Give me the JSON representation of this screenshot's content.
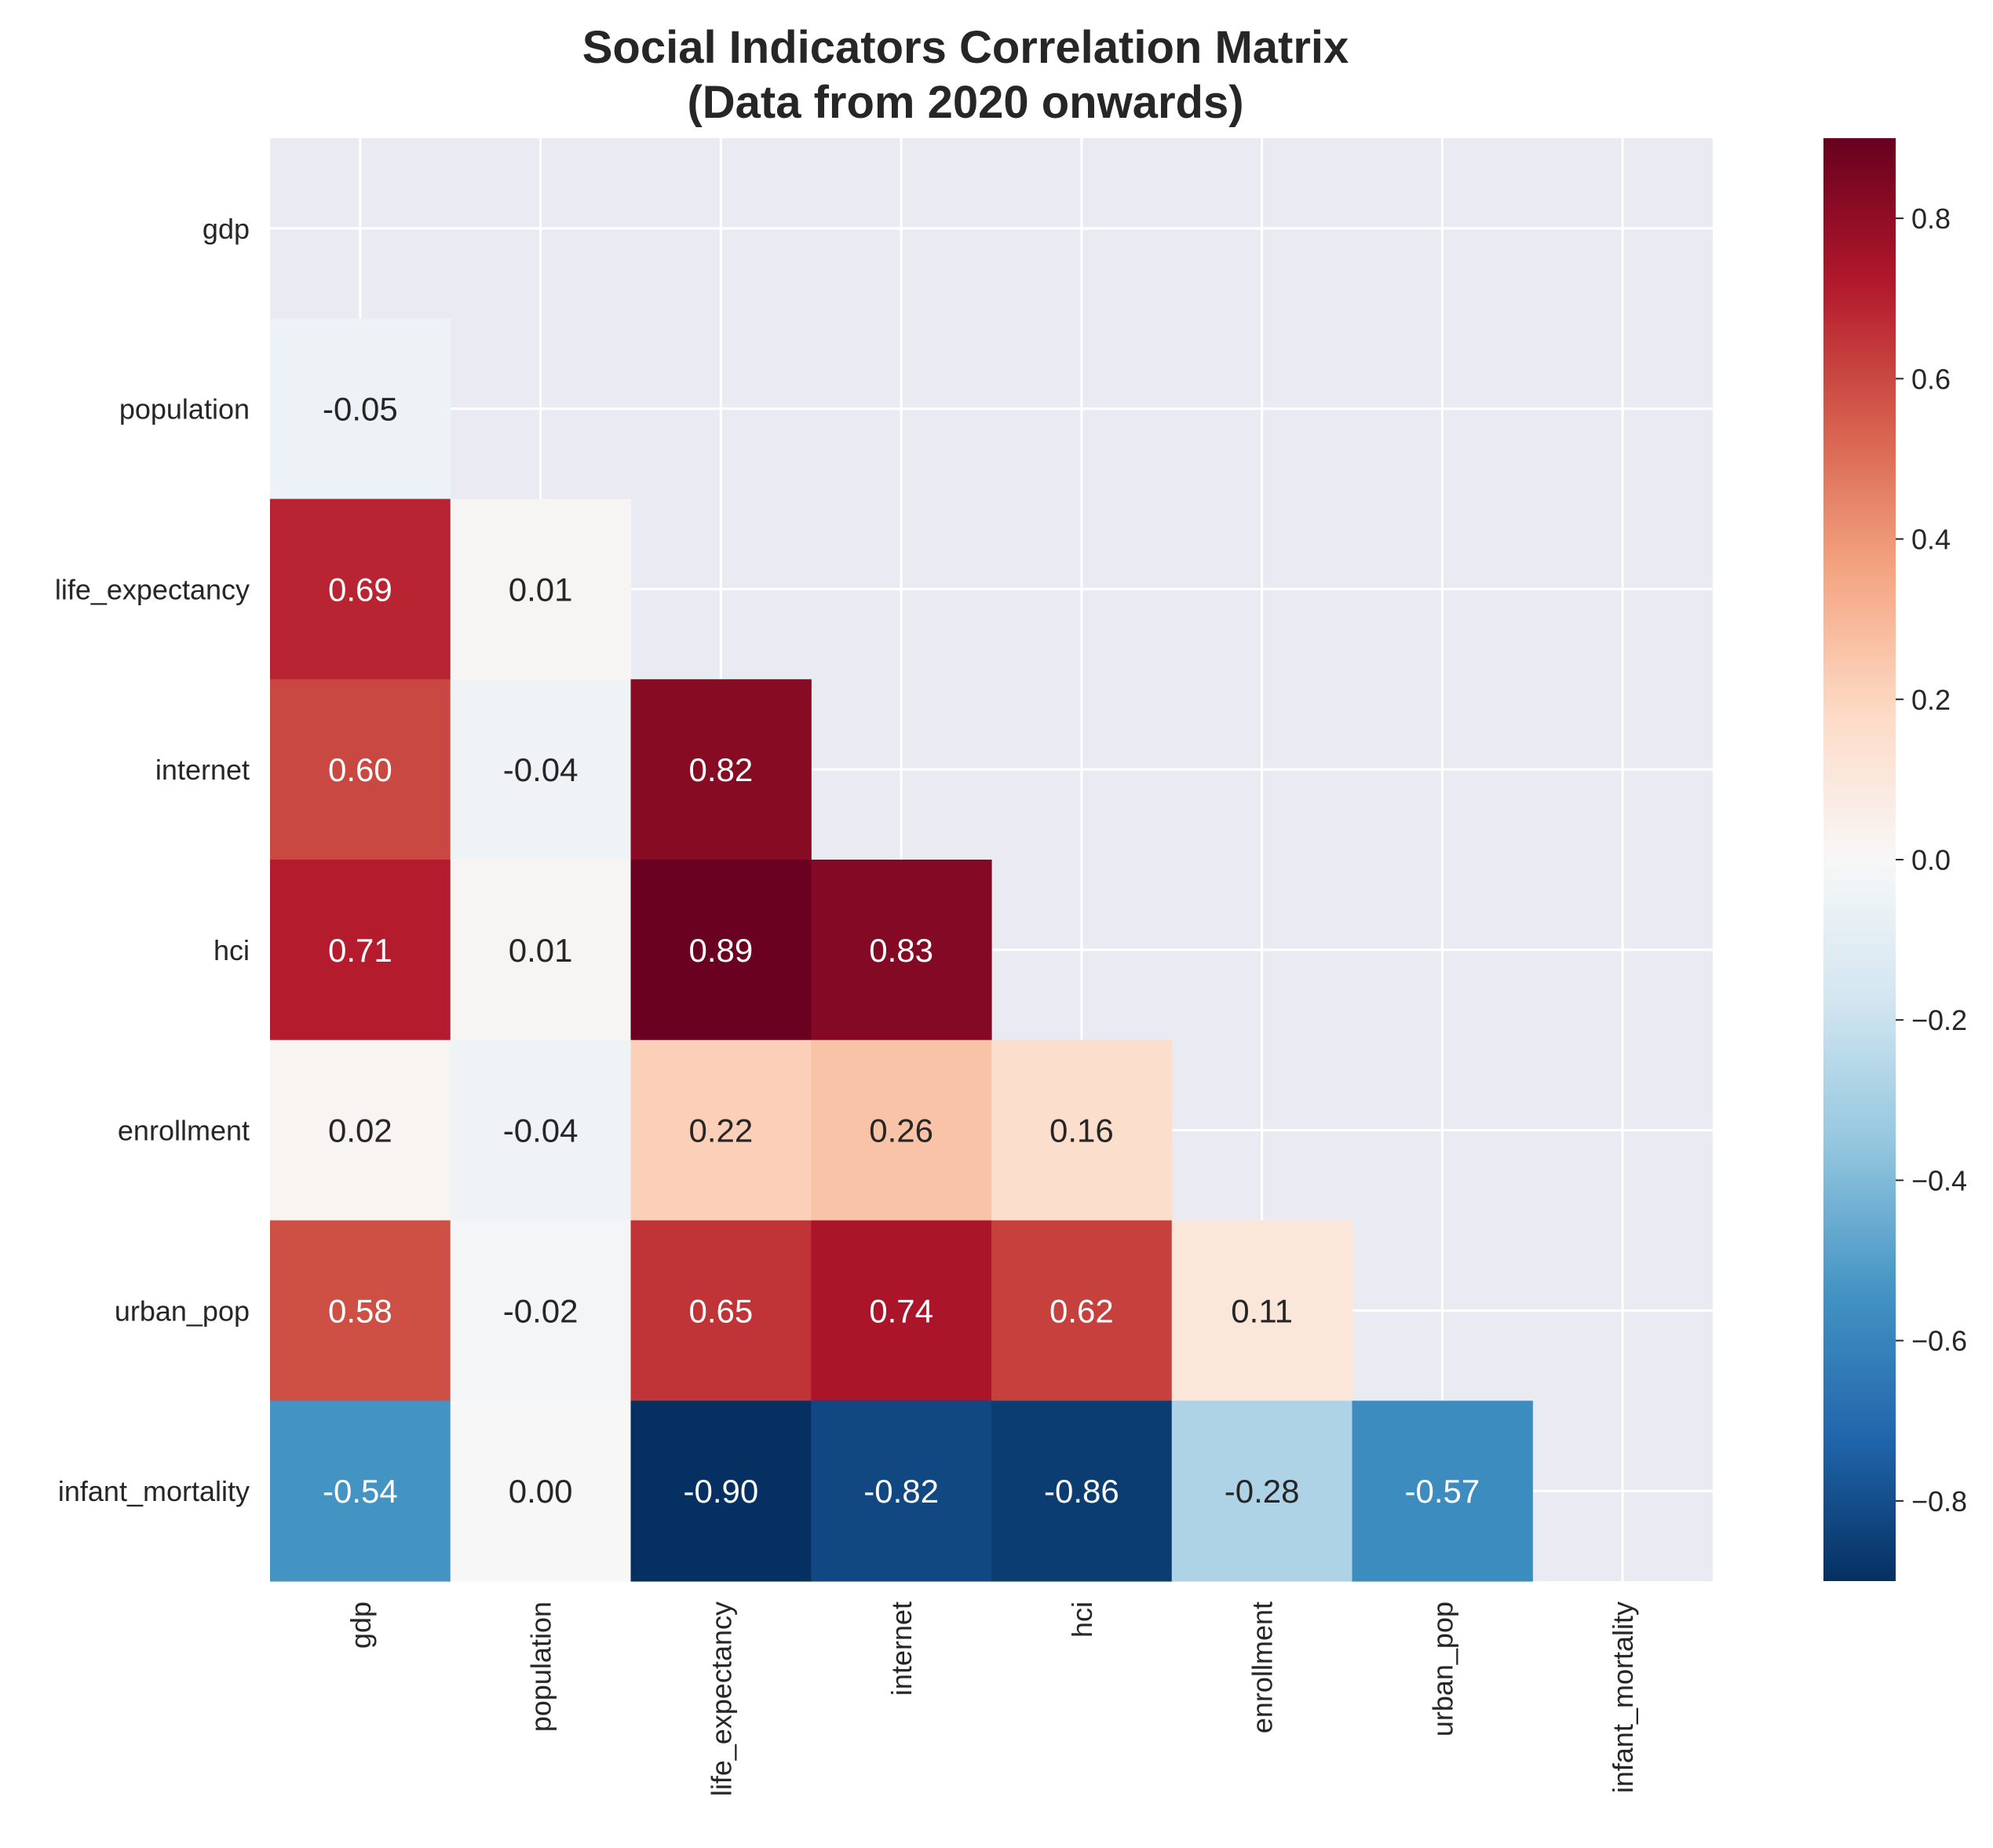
{
  "chart_data": {
    "type": "heatmap",
    "title": [
      "Social Indicators Correlation Matrix",
      "(Data from 2020 onwards)"
    ],
    "variables": [
      "gdp",
      "population",
      "life_expectancy",
      "internet",
      "hci",
      "enrollment",
      "urban_pop",
      "infant_mortality"
    ],
    "mask": "upper-triangle-including-diagonal",
    "matrix": [
      [
        null,
        null,
        null,
        null,
        null,
        null,
        null,
        null
      ],
      [
        -0.05,
        null,
        null,
        null,
        null,
        null,
        null,
        null
      ],
      [
        0.69,
        0.01,
        null,
        null,
        null,
        null,
        null,
        null
      ],
      [
        0.6,
        -0.04,
        0.82,
        null,
        null,
        null,
        null,
        null
      ],
      [
        0.71,
        0.01,
        0.89,
        0.83,
        null,
        null,
        null,
        null
      ],
      [
        0.02,
        -0.04,
        0.22,
        0.26,
        0.16,
        null,
        null,
        null
      ],
      [
        0.58,
        -0.02,
        0.65,
        0.74,
        0.62,
        0.11,
        null,
        null
      ],
      [
        -0.54,
        0.0,
        -0.9,
        -0.82,
        -0.86,
        -0.28,
        -0.57,
        null
      ]
    ],
    "colormap": "RdBu_r",
    "vmin": -0.9,
    "vmax": 0.9,
    "colorbar_ticks": [
      -0.8,
      -0.6,
      -0.4,
      -0.2,
      0.0,
      0.2,
      0.4,
      0.6,
      0.8
    ],
    "colorbar_tick_labels": [
      "−0.8",
      "−0.6",
      "−0.4",
      "−0.2",
      "0.0",
      "0.2",
      "0.4",
      "0.6",
      "0.8"
    ],
    "grid": true,
    "colors": {
      "background": "#eaeaf2",
      "grid": "#ffffff",
      "text_dark": "#262626",
      "text_light": "#ffffff"
    }
  }
}
